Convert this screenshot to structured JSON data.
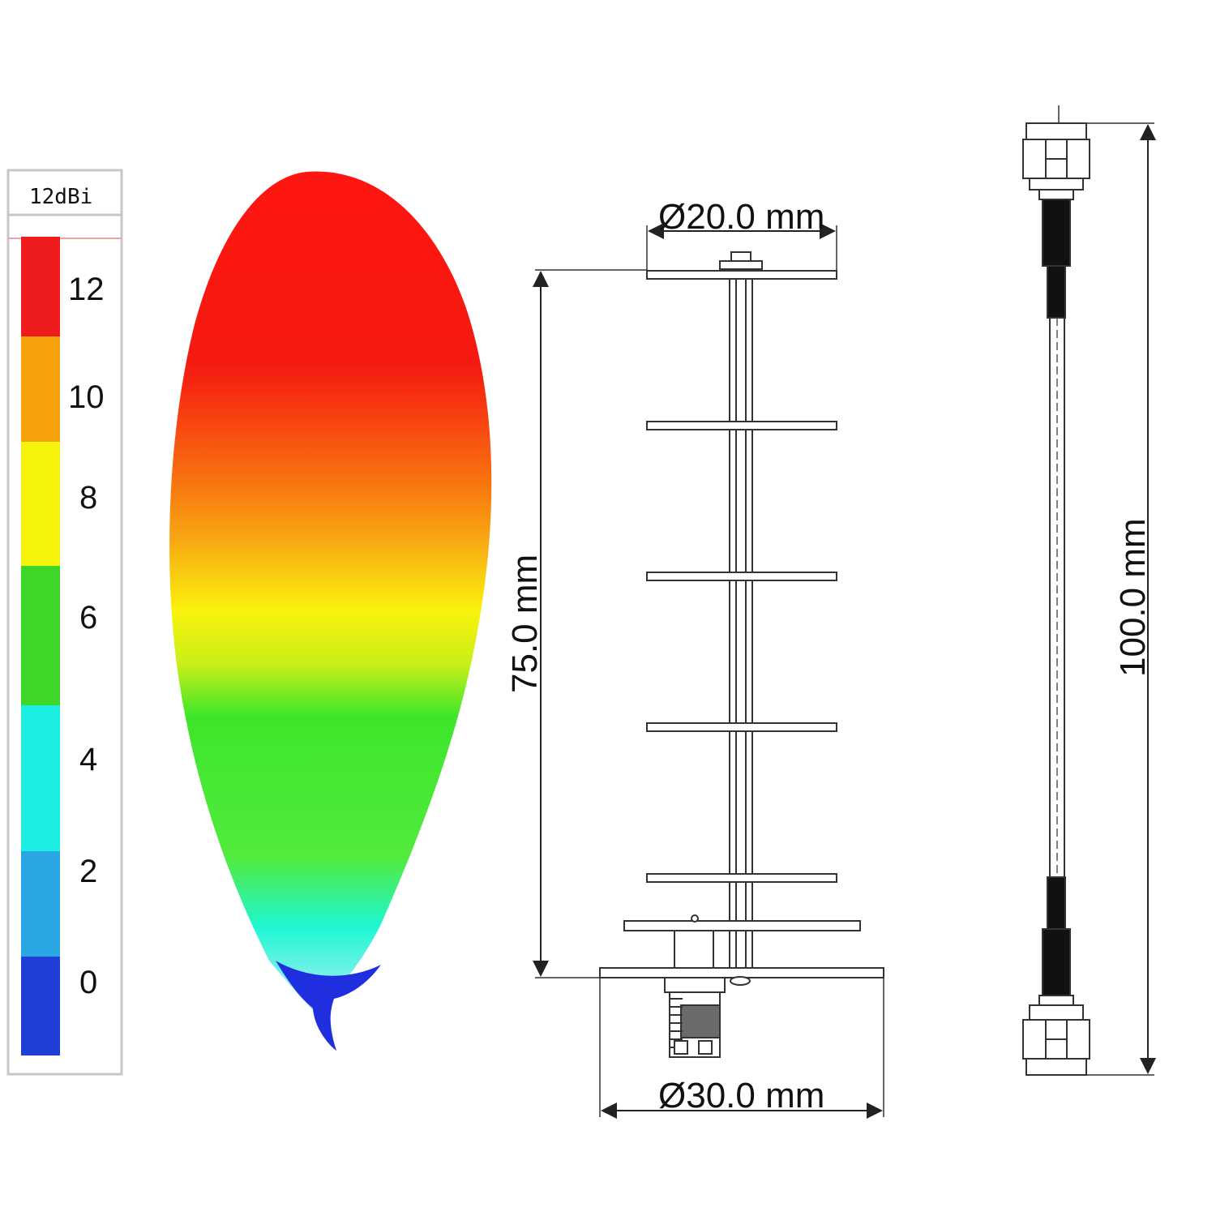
{
  "colorbar": {
    "unit_label": "12dBi",
    "levels": [
      {
        "value": "12",
        "color": "#ee1c1c"
      },
      {
        "value": "10",
        "color": "#f7a20d"
      },
      {
        "value": "8",
        "color": "#f5f20c"
      },
      {
        "value": "6",
        "color": "#3fd62a"
      },
      {
        "value": "4",
        "color": "#1cefe2"
      },
      {
        "value": "2",
        "color": "#2aa7e2"
      },
      {
        "value": "0",
        "color": "#1f3fd6"
      }
    ]
  },
  "dimensions": {
    "element_diameter": "Ø20.0 mm",
    "antenna_height": "75.0 mm",
    "base_diameter": "Ø30.0 mm",
    "cable_length": "100.0 mm"
  },
  "colors": {
    "line": "#333333",
    "cable_black": "#111111",
    "lobe_red": "#ff1a10",
    "lobe_orange": "#f79a10",
    "lobe_yellow": "#f8f20c",
    "lobe_green": "#3ee62a",
    "lobe_cyan": "#20f5d8",
    "lobe_blue": "#1f2fe0"
  }
}
